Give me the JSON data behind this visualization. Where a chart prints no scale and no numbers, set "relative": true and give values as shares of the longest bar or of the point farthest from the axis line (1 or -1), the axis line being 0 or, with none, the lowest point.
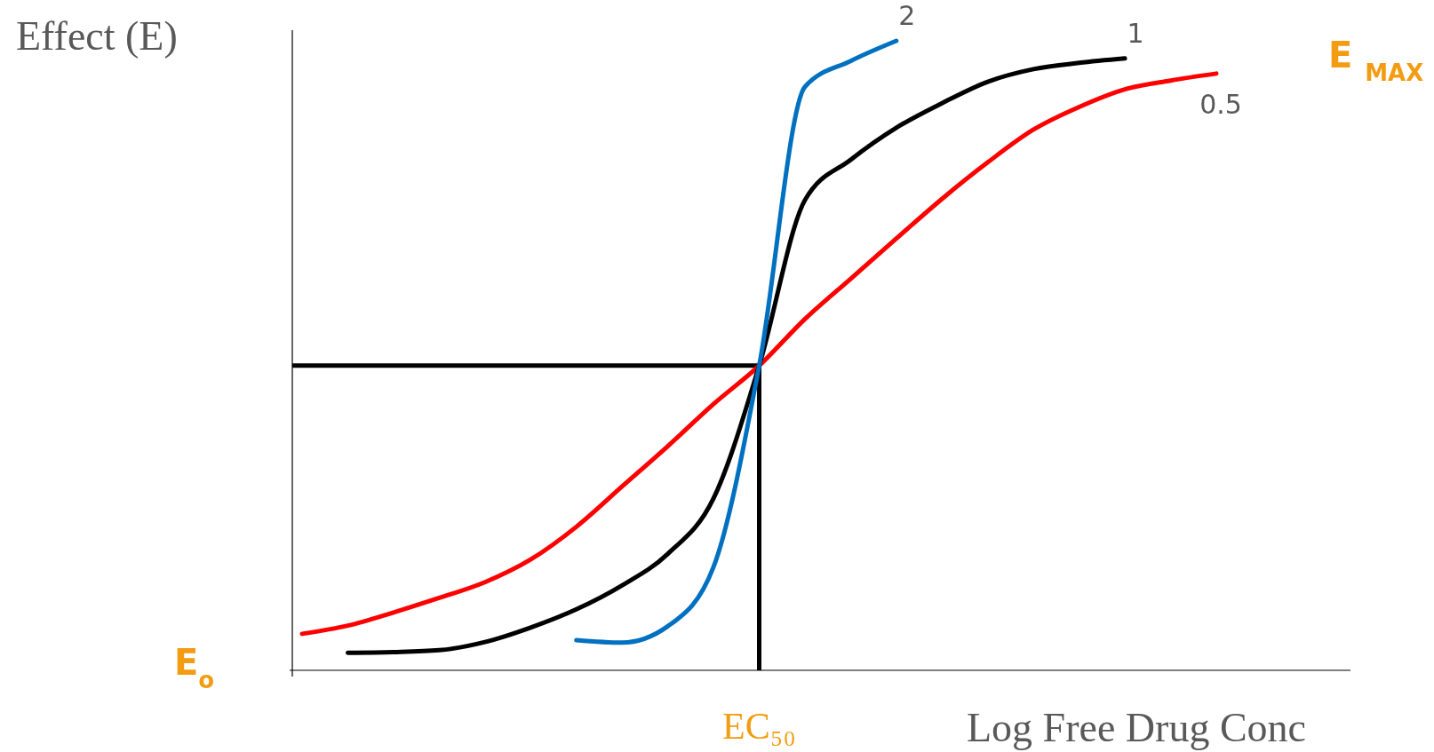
{
  "chart_data": {
    "type": "line",
    "relative": true,
    "ylabel": "Effect (E)",
    "xlabel": "Log Free Drug Conc",
    "categories": [
      null,
      null,
      null,
      null,
      null,
      null,
      null,
      null,
      null,
      null,
      null,
      null,
      null,
      null,
      null,
      null,
      null,
      null,
      null,
      null,
      null
    ],
    "series": [
      {
        "name": "0.5",
        "color": "#ff0000",
        "values": [
          0.058,
          0.071,
          0.092,
          0.115,
          0.14,
          0.176,
          0.228,
          0.292,
          0.356,
          0.423,
          0.484,
          0.558,
          0.622,
          0.686,
          0.749,
          0.807,
          0.859,
          0.895,
          0.923,
          0.937,
          0.948
        ]
      },
      {
        "name": "1",
        "color": "#000000",
        "values": [
          null,
          0.028,
          0.029,
          0.032,
          0.045,
          0.068,
          0.097,
          0.135,
          0.185,
          0.273,
          0.484,
          0.747,
          0.811,
          0.862,
          0.901,
          0.935,
          0.955,
          0.965,
          0.972,
          null,
          null
        ]
      },
      {
        "name": "2",
        "color": "#0070c0",
        "values": [
          null,
          null,
          null,
          null,
          null,
          null,
          0.048,
          0.044,
          0.07,
          0.164,
          0.484,
          0.927,
          0.968,
          1,
          null,
          null,
          null,
          null,
          null,
          null,
          null
        ]
      }
    ],
    "ref_lines": [
      {
        "axis": "y",
        "value": 0.484,
        "color": "#000000"
      }
    ],
    "annotations": [
      "E$_{o}$",
      "E $_{MAX}$",
      "EC₅₀"
    ],
    "marker": "none",
    "line_style": "solid",
    "grid": false,
    "legend": false
  }
}
